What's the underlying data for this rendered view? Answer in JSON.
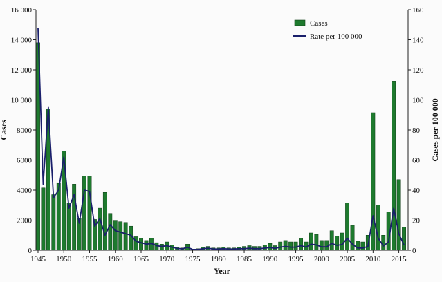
{
  "chart_data": {
    "type": "bar",
    "xlabel": "Year",
    "ylabel": "Cases",
    "y2label": "Cases per 100 000",
    "ylim": [
      0,
      16000
    ],
    "y2lim": [
      0,
      160
    ],
    "xlim": [
      1944.6,
      2016.8
    ],
    "grid": false,
    "legend_position": "top-right",
    "colors": {
      "bars": "#1e7a2e",
      "bar_edge": "#0f3d17",
      "line": "#1a1f6b"
    },
    "x_ticks": [
      "1945",
      "1950",
      "1955",
      "1960",
      "1965",
      "1970",
      "1975",
      "1980",
      "1985",
      "1990",
      "1995",
      "2000",
      "2005",
      "2010",
      "2015"
    ],
    "y_ticks": [
      "0",
      "2000",
      "4000",
      "6000",
      "8000",
      "10 000",
      "12 000",
      "14 000",
      "16 000"
    ],
    "y2_ticks": [
      "0",
      "20",
      "40",
      "60",
      "80",
      "100",
      "120",
      "140",
      "160"
    ],
    "x": [
      1945,
      1946,
      1947,
      1948,
      1949,
      1950,
      1951,
      1952,
      1953,
      1954,
      1955,
      1956,
      1957,
      1958,
      1959,
      1960,
      1961,
      1962,
      1963,
      1964,
      1965,
      1966,
      1967,
      1968,
      1969,
      1970,
      1971,
      1972,
      1973,
      1974,
      1975,
      1976,
      1977,
      1978,
      1979,
      1980,
      1981,
      1982,
      1983,
      1984,
      1985,
      1986,
      1987,
      1988,
      1989,
      1990,
      1991,
      1992,
      1993,
      1994,
      1995,
      1996,
      1997,
      1998,
      1999,
      2000,
      2001,
      2002,
      2003,
      2004,
      2005,
      2006,
      2007,
      2008,
      2009,
      2010,
      2011,
      2012,
      2013,
      2014,
      2015,
      2016
    ],
    "series": [
      {
        "name": "Cases",
        "kind": "bar",
        "axis": "left",
        "values": [
          13800,
          4150,
          9400,
          3700,
          4450,
          6600,
          3150,
          4400,
          2150,
          4950,
          4950,
          2050,
          2800,
          3850,
          2450,
          1950,
          1900,
          1850,
          1600,
          900,
          800,
          650,
          800,
          500,
          400,
          550,
          350,
          200,
          150,
          400,
          80,
          100,
          200,
          250,
          150,
          150,
          200,
          150,
          150,
          200,
          250,
          300,
          250,
          250,
          350,
          450,
          300,
          550,
          650,
          550,
          550,
          800,
          550,
          1150,
          1050,
          650,
          650,
          1300,
          950,
          1150,
          3150,
          1650,
          600,
          550,
          1000,
          9150,
          3000,
          1000,
          2550,
          11250,
          4700,
          1550
        ]
      },
      {
        "name": "Rate per 100 000",
        "kind": "line",
        "axis": "right",
        "values": [
          148,
          44,
          95,
          35,
          40,
          62,
          28,
          37,
          18,
          40,
          39,
          16,
          21,
          10,
          17,
          13,
          12,
          11,
          10,
          6,
          5,
          4,
          4.5,
          3,
          2.5,
          3,
          2,
          1.2,
          0.9,
          2,
          0.5,
          0.5,
          1,
          1.3,
          0.8,
          0.8,
          1,
          0.8,
          0.8,
          1,
          1,
          1.3,
          1,
          1,
          1.4,
          1.8,
          1.2,
          2,
          2.5,
          2,
          2,
          3,
          2,
          4,
          3.5,
          2.2,
          2.2,
          4.5,
          3.2,
          3.8,
          8,
          4,
          1.5,
          1.4,
          2.5,
          23,
          8,
          2.8,
          5.5,
          28,
          11,
          3.5
        ]
      }
    ]
  }
}
